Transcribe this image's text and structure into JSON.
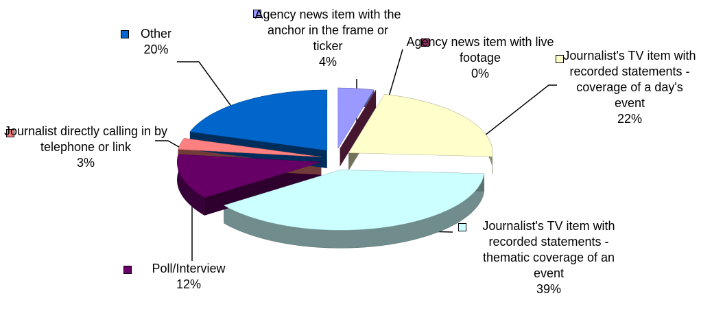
{
  "chart_data": {
    "type": "pie",
    "categories": [
      "Agency news item with the anchor in the frame or ticker",
      "Agency news item with live footage",
      "Journalist's TV item with recorded statements - coverage of a day's event",
      "Journalist's TV item with recorded statements - thematic coverage of an event",
      "Poll/Interview",
      "Journalist directly calling in by telephone or link",
      "Other"
    ],
    "values": [
      4,
      0,
      22,
      39,
      12,
      3,
      20
    ],
    "value_labels": [
      "4%",
      "0%",
      "22%",
      "39%",
      "12%",
      "3%",
      "20%"
    ],
    "colors": [
      "#9999ff",
      "#993366",
      "#ffffcc",
      "#ccffff",
      "#660066",
      "#ff8080",
      "#0066cc"
    ]
  }
}
